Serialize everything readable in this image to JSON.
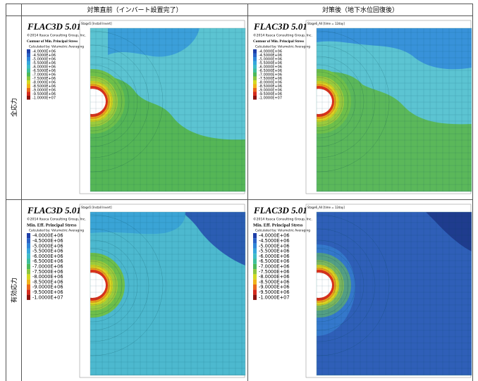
{
  "table": {
    "headers": [
      "対策直前（インバート設置完了）",
      "対策後（地下水位回復後）"
    ],
    "legend_colors": [
      "#1f3fa8",
      "#2a62c6",
      "#2f86d8",
      "#36a7dc",
      "#3fbcc8",
      "#3fbf9a",
      "#4cb85a",
      "#8cc63f",
      "#d5d81f",
      "#f0b21a",
      "#e8661c",
      "#d42a1c",
      "#8c1410"
    ],
    "rows": [
      {
        "label": "全応力",
        "panels": [
          {
            "software": "FLAC3D 5.01",
            "copyright": "©2014 Itasca Consulting Group, Inc.",
            "legend_title": "Contour of Min. Principal Stress",
            "legend_subtitle": "Calculated by: Volumetric Averaging",
            "stage": "Stage5 [Install Invert]",
            "legend_labels": [
              "-4.0000E+06",
              "-4.5000E+06",
              "-5.0000E+06",
              "-5.5000E+06",
              "-6.0000E+06",
              "-6.5000E+06",
              "-7.0000E+06",
              "-7.5000E+06",
              "-8.0000E+06",
              "-8.5000E+06",
              "-9.0000E+06",
              "-9.5000E+06",
              "-1.0000E+07"
            ]
          },
          {
            "software": "FLAC3D 5.01",
            "copyright": "©2014 Itasca Consulting Group, Inc.",
            "legend_title": "Contour of Min. Principal Stress",
            "legend_subtitle": "Calculated by: Volumetric Averaging",
            "stage": "Stage6_All [time = 12day]",
            "legend_labels": [
              "-4.0000E+06",
              "-4.5000E+06",
              "-5.0000E+06",
              "-5.5000E+06",
              "-6.0000E+06",
              "-6.5000E+06",
              "-7.0000E+06",
              "-7.5000E+06",
              "-8.0000E+06",
              "-8.5000E+06",
              "-9.0000E+06",
              "-9.5000E+06",
              "-1.0000E+07"
            ]
          }
        ]
      },
      {
        "label": "有効応力",
        "panels": [
          {
            "software": "FLAC3D 5.01",
            "copyright": "©2014 Itasca Consulting Group, Inc.",
            "legend_title": "Min. Eff. Principal Stress",
            "legend_subtitle": "Calculated by: Volumetric Averaging",
            "stage": "Stage5 [Install Invert]",
            "legend_labels": [
              "-4.0000E+06",
              "-4.5000E+06",
              "-5.0000E+06",
              "-5.5000E+06",
              "-6.0000E+06",
              "-6.5000E+06",
              "-7.0000E+06",
              "-7.5000E+06",
              "-8.0000E+06",
              "-8.5000E+06",
              "-9.0000E+06",
              "-9.5000E+06",
              "-1.0000E+07"
            ]
          },
          {
            "software": "FLAC3D 5.01",
            "copyright": "©2014 Itasca Consulting Group, Inc.",
            "legend_title": "Min. Eff. Principal Stress",
            "legend_subtitle": "Calculated by: Volumetric Averaging",
            "stage": "Stage6_All [time = 12day]",
            "legend_labels": [
              "-4.0000E+06",
              "-4.5000E+06",
              "-5.0000E+06",
              "-5.5000E+06",
              "-6.0000E+06",
              "-6.5000E+06",
              "-7.0000E+06",
              "-7.5000E+06",
              "-8.0000E+06",
              "-8.5000E+06",
              "-9.0000E+06",
              "-9.5000E+06",
              "-1.0000E+07"
            ]
          }
        ]
      }
    ]
  }
}
